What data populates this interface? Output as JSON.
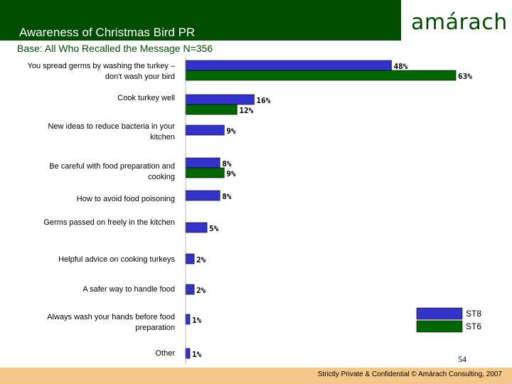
{
  "header": {
    "title": "Awareness of Christmas Bird PR",
    "logo_text": "amárach"
  },
  "subtitle": "Base: All Who Recalled the Message N=356",
  "footer": {
    "text": "Strictly Private & Confidential © Amárach Consulting, 2007",
    "page_number": "54"
  },
  "colors": {
    "st8": "#3333cc",
    "st6": "#006600",
    "header": "#004d00",
    "footer": "#f5c98a"
  },
  "chart_data": {
    "type": "bar",
    "orientation": "horizontal",
    "title": "Awareness of Christmas Bird PR",
    "xlim": [
      0,
      65
    ],
    "categories": [
      "You spread germs by washing the turkey – don't wash your bird",
      "Cook turkey well",
      "New ideas to reduce bacteria in your kitchen",
      "Be careful with food preparation and cooking",
      "How to avoid food poisoning",
      "Germs passed on freely in the kitchen",
      "Helpful advice on cooking turkeys",
      "A safer way to handle food",
      "Always wash your hands before food preparation",
      "Other"
    ],
    "series": [
      {
        "name": "ST8",
        "values": [
          48,
          16,
          9,
          8,
          8,
          5,
          2,
          2,
          1,
          1
        ],
        "labels": [
          "48%",
          "16%",
          "9%",
          "8%",
          "8%",
          "5%",
          "2%",
          "2%",
          "1%",
          "1%"
        ]
      },
      {
        "name": "ST6",
        "values": [
          63,
          12,
          null,
          9,
          null,
          null,
          null,
          null,
          null,
          null
        ],
        "labels": [
          "63%",
          "12%",
          "",
          "9%",
          "",
          "",
          "",
          "",
          "",
          ""
        ]
      }
    ],
    "legend": {
      "position": "bottom-right",
      "entries": [
        "ST8",
        "ST6"
      ]
    }
  }
}
